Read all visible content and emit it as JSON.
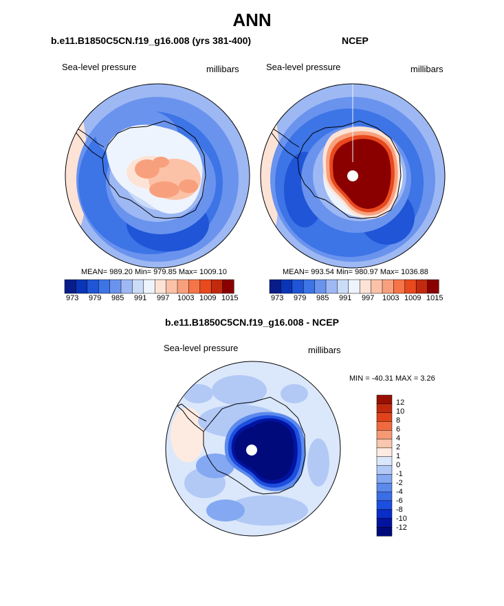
{
  "page": {
    "title": "ANN"
  },
  "panels": [
    {
      "title": "b.e11.B1850C5CN.f19_g16.008 (yrs 381-400)",
      "left_label": "Sea-level pressure",
      "right_label": "millibars",
      "stats_text": "MEAN= 989.20  Min= 979.85  Max= 1009.10"
    },
    {
      "title": "NCEP",
      "left_label": "Sea-level pressure",
      "right_label": "millibars",
      "stats_text": "MEAN= 993.54  Min= 980.97  Max= 1036.88"
    },
    {
      "title": "b.e11.B1850C5CN.f19_g16.008 - NCEP",
      "left_label": "Sea-level pressure",
      "right_label": "millibars",
      "stats_text": "MIN = -40.31 MAX =   3.26"
    }
  ],
  "colors": {
    "abs_scale": [
      "#081d8a",
      "#0a35b8",
      "#1f55d6",
      "#3d74e6",
      "#6a93ee",
      "#9db8f3",
      "#cbdcf8",
      "#eef4fd",
      "#fde3d6",
      "#fbc2a8",
      "#f8a07d",
      "#f57548",
      "#e8491d",
      "#c22a0e",
      "#8a0000"
    ],
    "diff_scale": [
      "#000a7a",
      "#0213a0",
      "#0a2cc7",
      "#1c4fe0",
      "#3a6de6",
      "#5c8aec",
      "#84a8f1",
      "#b2c9f6",
      "#dbe7fb",
      "#fdebe1",
      "#f9c7ad",
      "#f59a74",
      "#ef6a3e",
      "#e0431b",
      "#bf2a0c",
      "#991000"
    ]
  },
  "chart_data": [
    {
      "type": "heatmap",
      "title": "b.e11.B1850C5CN.f19_g16.008 (yrs 381-400)",
      "field": "Sea-level pressure",
      "units": "millibars",
      "projection": "south-polar stereographic",
      "stats": {
        "mean": 989.2,
        "min": 979.85,
        "max": 1009.1
      },
      "colorbar_ticks": [
        "973",
        "979",
        "985",
        "991",
        "997",
        "1003",
        "1009",
        "1015"
      ]
    },
    {
      "type": "heatmap",
      "title": "NCEP",
      "field": "Sea-level pressure",
      "units": "millibars",
      "projection": "south-polar stereographic",
      "stats": {
        "mean": 993.54,
        "min": 980.97,
        "max": 1036.88
      },
      "colorbar_ticks": [
        "973",
        "979",
        "985",
        "991",
        "997",
        "1003",
        "1009",
        "1015"
      ]
    },
    {
      "type": "heatmap",
      "title": "b.e11.B1850C5CN.f19_g16.008 - NCEP",
      "field": "Sea-level pressure",
      "units": "millibars",
      "projection": "south-polar stereographic",
      "stats": {
        "min": -40.31,
        "max": 3.26
      },
      "colorbar_ticks": [
        "12",
        "10",
        "8",
        "6",
        "4",
        "2",
        "1",
        "0",
        "-1",
        "-2",
        "-4",
        "-6",
        "-8",
        "-10",
        "-12"
      ]
    }
  ]
}
